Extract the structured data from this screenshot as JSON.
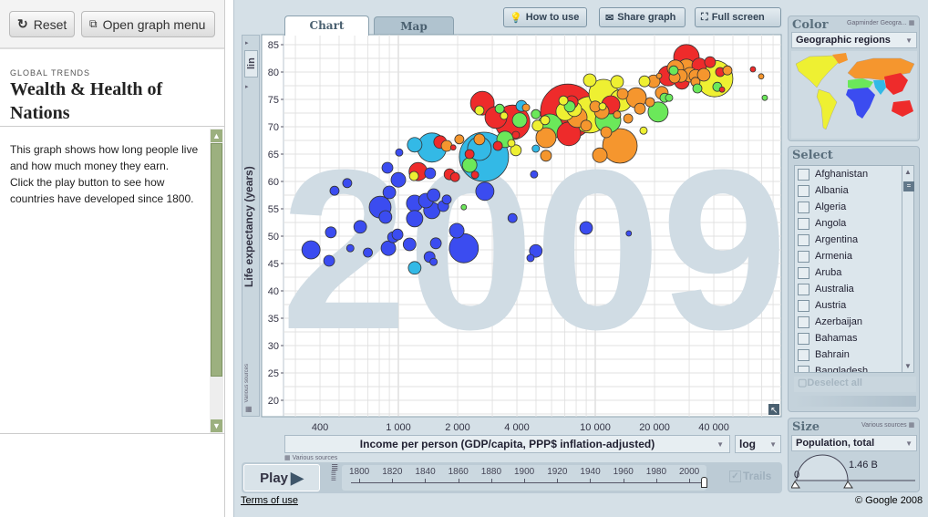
{
  "left": {
    "reset": "Reset",
    "open_menu": "Open graph menu",
    "kicker": "GLOBAL TRENDS",
    "title": "Wealth & Health of Nations",
    "description": [
      "This graph shows how long people live and how much money they earn.",
      "Click the play button to see how countries have developed since 1800."
    ]
  },
  "toolbar": {
    "how_to_use": "How to use",
    "share": "Share graph",
    "fullscreen": "Full screen"
  },
  "tabs": [
    {
      "label": "Chart",
      "active": true
    },
    {
      "label": "Map",
      "active": false
    }
  ],
  "yaxis": {
    "scale_button": "lin",
    "label": "Life expectancy (years)",
    "source": "Various sources"
  },
  "xaxis": {
    "label": "Income per person (GDP/capita, PPP$ inflation-adjusted)",
    "scale": "log",
    "source": "Various sources"
  },
  "play": {
    "label": "Play",
    "trails": "Trails",
    "trails_checked": true,
    "years": [
      "1800",
      "1820",
      "1840",
      "1860",
      "1880",
      "1900",
      "1920",
      "1940",
      "1960",
      "1980",
      "2000"
    ],
    "current_year": 2009,
    "range": [
      1800,
      2009
    ]
  },
  "color_panel": {
    "title": "Color",
    "source": "Gapminder Geogra...",
    "selected": "Geographic regions"
  },
  "select_panel": {
    "title": "Select",
    "countries": [
      "Afghanistan",
      "Albania",
      "Algeria",
      "Angola",
      "Argentina",
      "Armenia",
      "Aruba",
      "Australia",
      "Austria",
      "Azerbaijan",
      "Bahamas",
      "Bahrain",
      "Bangladesh"
    ],
    "deselect": "Deselect all"
  },
  "size_panel": {
    "title": "Size",
    "source": "Various sources",
    "selected": "Population, total",
    "min": "0",
    "max": "1.46 B"
  },
  "footer": {
    "terms": "Terms of use",
    "copyright": "© Google 2008"
  },
  "chart_data": {
    "type": "scatter",
    "year_watermark": "2009",
    "xlabel": "Income per person (GDP/capita, PPP$ inflation-adjusted)",
    "ylabel": "Life expectancy (years)",
    "xscale": "log",
    "xlim": [
      270,
      95000
    ],
    "ylim": [
      17,
      87
    ],
    "xticks": [
      {
        "v": 400,
        "l": "400"
      },
      {
        "v": 1000,
        "l": "1 000"
      },
      {
        "v": 2000,
        "l": "2 000"
      },
      {
        "v": 4000,
        "l": "4 000"
      },
      {
        "v": 10000,
        "l": "10 000"
      },
      {
        "v": 20000,
        "l": "20 000"
      },
      {
        "v": 40000,
        "l": "40 000"
      }
    ],
    "yticks": [
      20,
      25,
      30,
      35,
      40,
      45,
      50,
      55,
      60,
      65,
      70,
      75,
      80,
      85
    ],
    "grid": true,
    "size_max_population_millions": 1460,
    "region_colors": [
      "#3b4cf0",
      "#33b9e6",
      "#ee2b2b",
      "#f5962e",
      "#eef032",
      "#6be85a"
    ],
    "point_fields": [
      "income",
      "life_expectancy",
      "population_millions",
      "region"
    ],
    "points": [
      [
        360,
        47.5,
        148,
        0
      ],
      [
        445,
        45.5,
        53,
        0
      ],
      [
        474,
        58.3,
        37,
        0
      ],
      [
        550,
        59.7,
        37,
        0
      ],
      [
        454,
        50.7,
        53,
        0
      ],
      [
        570,
        47.8,
        24,
        0
      ],
      [
        640,
        51.7,
        72,
        0
      ],
      [
        700,
        47,
        37,
        0
      ],
      [
        808,
        55.3,
        213,
        0
      ],
      [
        860,
        53.5,
        72,
        0
      ],
      [
        890,
        47.8,
        95,
        0
      ],
      [
        940,
        49.8,
        53,
        0
      ],
      [
        990,
        50.3,
        53,
        0
      ],
      [
        900,
        58,
        72,
        0
      ],
      [
        1000,
        60.3,
        95,
        0
      ],
      [
        880,
        62.5,
        53,
        0
      ],
      [
        1010,
        65.3,
        24,
        0
      ],
      [
        1140,
        48.5,
        72,
        0
      ],
      [
        1210,
        56,
        120,
        0
      ],
      [
        1210,
        53.2,
        120,
        0
      ],
      [
        1380,
        56.5,
        95,
        0
      ],
      [
        1510,
        57.5,
        72,
        0
      ],
      [
        1480,
        54.7,
        120,
        0
      ],
      [
        1690,
        55.5,
        53,
        0
      ],
      [
        1760,
        56.7,
        37,
        0
      ],
      [
        1450,
        61.5,
        53,
        0
      ],
      [
        1550,
        48.7,
        53,
        0
      ],
      [
        1440,
        46.2,
        53,
        0
      ],
      [
        1510,
        45.3,
        24,
        0
      ],
      [
        1980,
        51,
        95,
        0
      ],
      [
        2150,
        47.8,
        378,
        0
      ],
      [
        2750,
        58.2,
        148,
        0
      ],
      [
        3800,
        53.3,
        37,
        0
      ],
      [
        4890,
        61.3,
        24,
        0
      ],
      [
        4990,
        47.3,
        72,
        0
      ],
      [
        4690,
        46,
        24,
        0
      ],
      [
        14800,
        50.5,
        13,
        0
      ],
      [
        8990,
        51.5,
        72,
        0
      ],
      [
        1210,
        44.2,
        72,
        1
      ],
      [
        1210,
        66.7,
        95,
        1
      ],
      [
        1480,
        66.2,
        378,
        1
      ],
      [
        2720,
        64.5,
        1077,
        1
      ],
      [
        2580,
        66,
        250,
        1
      ],
      [
        4990,
        66,
        24,
        1
      ],
      [
        4220,
        73.8,
        53,
        1
      ],
      [
        1630,
        67.2,
        72,
        2
      ],
      [
        1900,
        66.2,
        13,
        2
      ],
      [
        1260,
        61.8,
        148,
        2
      ],
      [
        1820,
        61.3,
        53,
        2
      ],
      [
        1940,
        60.8,
        37,
        2
      ],
      [
        2300,
        65,
        37,
        2
      ],
      [
        2450,
        61.2,
        24,
        2
      ],
      [
        3200,
        66.5,
        37,
        2
      ],
      [
        2670,
        74.3,
        250,
        2
      ],
      [
        3130,
        71.7,
        213,
        2
      ],
      [
        3800,
        70.8,
        533,
        2
      ],
      [
        3950,
        68.5,
        24,
        2
      ],
      [
        7260,
        72.8,
        1330,
        2
      ],
      [
        7340,
        68.7,
        250,
        2
      ],
      [
        7590,
        74.5,
        72,
        2
      ],
      [
        11990,
        74,
        148,
        2
      ],
      [
        23460,
        79.3,
        179,
        2
      ],
      [
        29040,
        82.7,
        290,
        2
      ],
      [
        27540,
        78.2,
        95,
        2
      ],
      [
        33730,
        81.2,
        95,
        2
      ],
      [
        38280,
        81.8,
        53,
        2
      ],
      [
        43060,
        80,
        37,
        2
      ],
      [
        44040,
        76.8,
        13,
        2
      ],
      [
        63200,
        80.5,
        13,
        2
      ],
      [
        1760,
        66.5,
        53,
        3
      ],
      [
        2040,
        67.7,
        37,
        3
      ],
      [
        2580,
        67.7,
        53,
        3
      ],
      [
        5620,
        68,
        179,
        3
      ],
      [
        5620,
        64.7,
        53,
        3
      ],
      [
        4450,
        73.5,
        24,
        3
      ],
      [
        8080,
        71.7,
        179,
        3
      ],
      [
        8990,
        70.2,
        53,
        3
      ],
      [
        10000,
        73.7,
        53,
        3
      ],
      [
        10780,
        72.8,
        95,
        3
      ],
      [
        13770,
        76,
        53,
        3
      ],
      [
        11360,
        69,
        53,
        3
      ],
      [
        12910,
        72.2,
        24,
        3
      ],
      [
        14690,
        71.5,
        37,
        3
      ],
      [
        16160,
        75.3,
        179,
        3
      ],
      [
        16860,
        73.3,
        53,
        3
      ],
      [
        18960,
        74.5,
        37,
        3
      ],
      [
        13340,
        66.5,
        533,
        3
      ],
      [
        10550,
        64.8,
        95,
        3
      ],
      [
        19780,
        78.3,
        72,
        3
      ],
      [
        21090,
        79.3,
        13,
        3
      ],
      [
        21770,
        76.2,
        72,
        3
      ],
      [
        25540,
        80.7,
        120,
        3
      ],
      [
        29040,
        80.7,
        148,
        3
      ],
      [
        27230,
        79.3,
        72,
        3
      ],
      [
        30290,
        79.5,
        95,
        3
      ],
      [
        32280,
        79.3,
        72,
        3
      ],
      [
        32280,
        78.2,
        37,
        3
      ],
      [
        35560,
        79.5,
        72,
        3
      ],
      [
        46900,
        80.3,
        37,
        3
      ],
      [
        69600,
        79.2,
        13,
        3
      ],
      [
        25290,
        79,
        53,
        3
      ],
      [
        1200,
        61,
        37,
        4
      ],
      [
        2580,
        73,
        37,
        4
      ],
      [
        3440,
        72,
        24,
        4
      ],
      [
        3750,
        67,
        24,
        4
      ],
      [
        3950,
        65.7,
        53,
        4
      ],
      [
        5100,
        70.2,
        53,
        4
      ],
      [
        5560,
        71.2,
        37,
        4
      ],
      [
        6890,
        74.8,
        37,
        4
      ],
      [
        7030,
        72.8,
        148,
        4
      ],
      [
        7830,
        73.2,
        95,
        4
      ],
      [
        9380,
        72.2,
        591,
        4
      ],
      [
        11010,
        76,
        378,
        4
      ],
      [
        10890,
        73.7,
        24,
        4
      ],
      [
        13480,
        74.8,
        213,
        4
      ],
      [
        12910,
        78.2,
        72,
        4
      ],
      [
        9380,
        78.5,
        72,
        4
      ],
      [
        17590,
        69.3,
        24,
        4
      ],
      [
        17780,
        78.3,
        53,
        4
      ],
      [
        40390,
        78.8,
        591,
        4
      ],
      [
        3480,
        67.7,
        120,
        5
      ],
      [
        2300,
        63,
        95,
        5
      ],
      [
        2150,
        55.3,
        13,
        5
      ],
      [
        3270,
        73.3,
        37,
        5
      ],
      [
        4130,
        71.2,
        95,
        5
      ],
      [
        4990,
        72.3,
        37,
        5
      ],
      [
        5870,
        70,
        290,
        5
      ],
      [
        7420,
        73.7,
        53,
        5
      ],
      [
        11610,
        71.2,
        290,
        5
      ],
      [
        20850,
        72.7,
        179,
        5
      ],
      [
        22480,
        75.3,
        37,
        5
      ],
      [
        23710,
        75.3,
        24,
        5
      ],
      [
        25000,
        80.3,
        37,
        5
      ],
      [
        33000,
        77,
        37,
        5
      ],
      [
        41700,
        77.3,
        37,
        5
      ],
      [
        72600,
        75.3,
        13,
        5
      ]
    ]
  }
}
